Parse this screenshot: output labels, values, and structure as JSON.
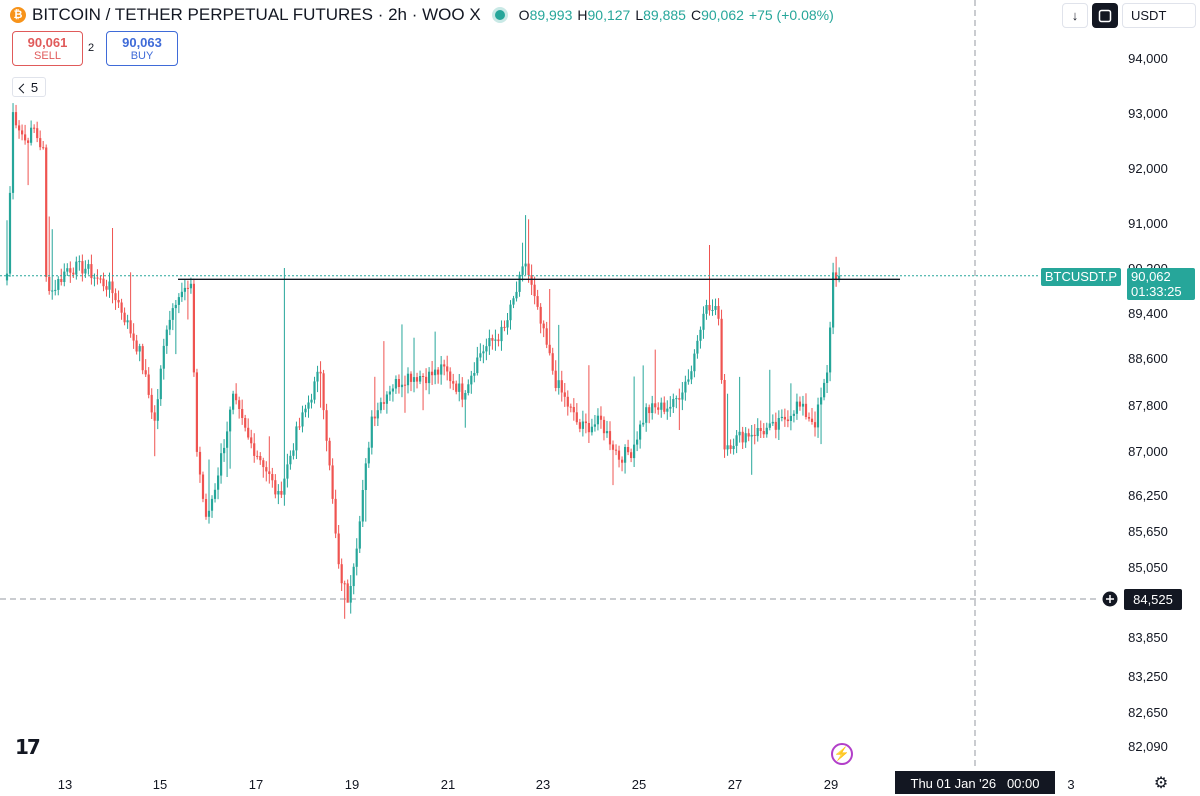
{
  "header": {
    "title": "BITCOIN / TETHER PERPETUAL FUTURES · 2h · WOO X",
    "ohlc": [
      {
        "k": "O",
        "v": "89,993"
      },
      {
        "k": "H",
        "v": "90,127"
      },
      {
        "k": "L",
        "v": "89,885"
      },
      {
        "k": "C",
        "v": "90,062"
      }
    ],
    "change": "+75 (+0.08%)"
  },
  "trade": {
    "sell_price": "90,061",
    "sell_label": "SELL",
    "spread": "2",
    "buy_price": "90,063",
    "buy_label": "BUY"
  },
  "indicators_count": "5",
  "toolbar": {
    "currency": "USDT"
  },
  "colors": {
    "up": "#26a69a",
    "down": "#ef5350",
    "crosshair": "#9598a1"
  },
  "chart_data": {
    "type": "candlestick",
    "symbol_label": "BTCUSDT.P",
    "last_price": "90,062",
    "countdown": "01:33:25",
    "crosshair_price": "84,525",
    "crosshair_time": "Thu 01 Jan '26   00:00",
    "y_ticks": [
      "94,000",
      "93,000",
      "92,000",
      "91,000",
      "90,200",
      "89,400",
      "88,600",
      "87,800",
      "87,000",
      "86,250",
      "85,650",
      "85,050",
      "83,850",
      "83,250",
      "82,650",
      "82,090"
    ],
    "x_ticks": [
      "13",
      "15",
      "17",
      "19",
      "21",
      "23",
      "25",
      "27",
      "29",
      "3"
    ],
    "horizontal_line": {
      "price": 90000
    },
    "keypoints": [
      [
        0,
        90100
      ],
      [
        2,
        93000
      ],
      [
        6,
        92500
      ],
      [
        9,
        92700
      ],
      [
        12,
        92300
      ],
      [
        13,
        90000
      ],
      [
        15,
        89800
      ],
      [
        20,
        90200
      ],
      [
        26,
        90200
      ],
      [
        30,
        90000
      ],
      [
        33,
        89900
      ],
      [
        36,
        89700
      ],
      [
        44,
        88700
      ],
      [
        49,
        87500
      ],
      [
        53,
        89200
      ],
      [
        57,
        89800
      ],
      [
        61,
        89800
      ],
      [
        63,
        87000
      ],
      [
        66,
        85800
      ],
      [
        69,
        86400
      ],
      [
        75,
        87900
      ],
      [
        80,
        87200
      ],
      [
        85,
        86800
      ],
      [
        90,
        86200
      ],
      [
        96,
        87300
      ],
      [
        104,
        88400
      ],
      [
        110,
        85000
      ],
      [
        113,
        84525
      ],
      [
        117,
        85800
      ],
      [
        121,
        87600
      ],
      [
        127,
        88100
      ],
      [
        133,
        88300
      ],
      [
        140,
        88300
      ],
      [
        145,
        88400
      ],
      [
        151,
        88000
      ],
      [
        157,
        88700
      ],
      [
        165,
        89100
      ],
      [
        172,
        90300
      ],
      [
        176,
        89400
      ],
      [
        182,
        88200
      ],
      [
        190,
        87400
      ],
      [
        197,
        87500
      ],
      [
        203,
        86900
      ],
      [
        207,
        87000
      ],
      [
        212,
        87700
      ],
      [
        221,
        87800
      ],
      [
        227,
        88400
      ],
      [
        231,
        89500
      ],
      [
        236,
        89400
      ],
      [
        238,
        87100
      ],
      [
        245,
        87300
      ],
      [
        255,
        87400
      ],
      [
        262,
        87800
      ],
      [
        268,
        87500
      ],
      [
        272,
        88300
      ],
      [
        274,
        90100
      ],
      [
        276,
        90062
      ]
    ]
  }
}
